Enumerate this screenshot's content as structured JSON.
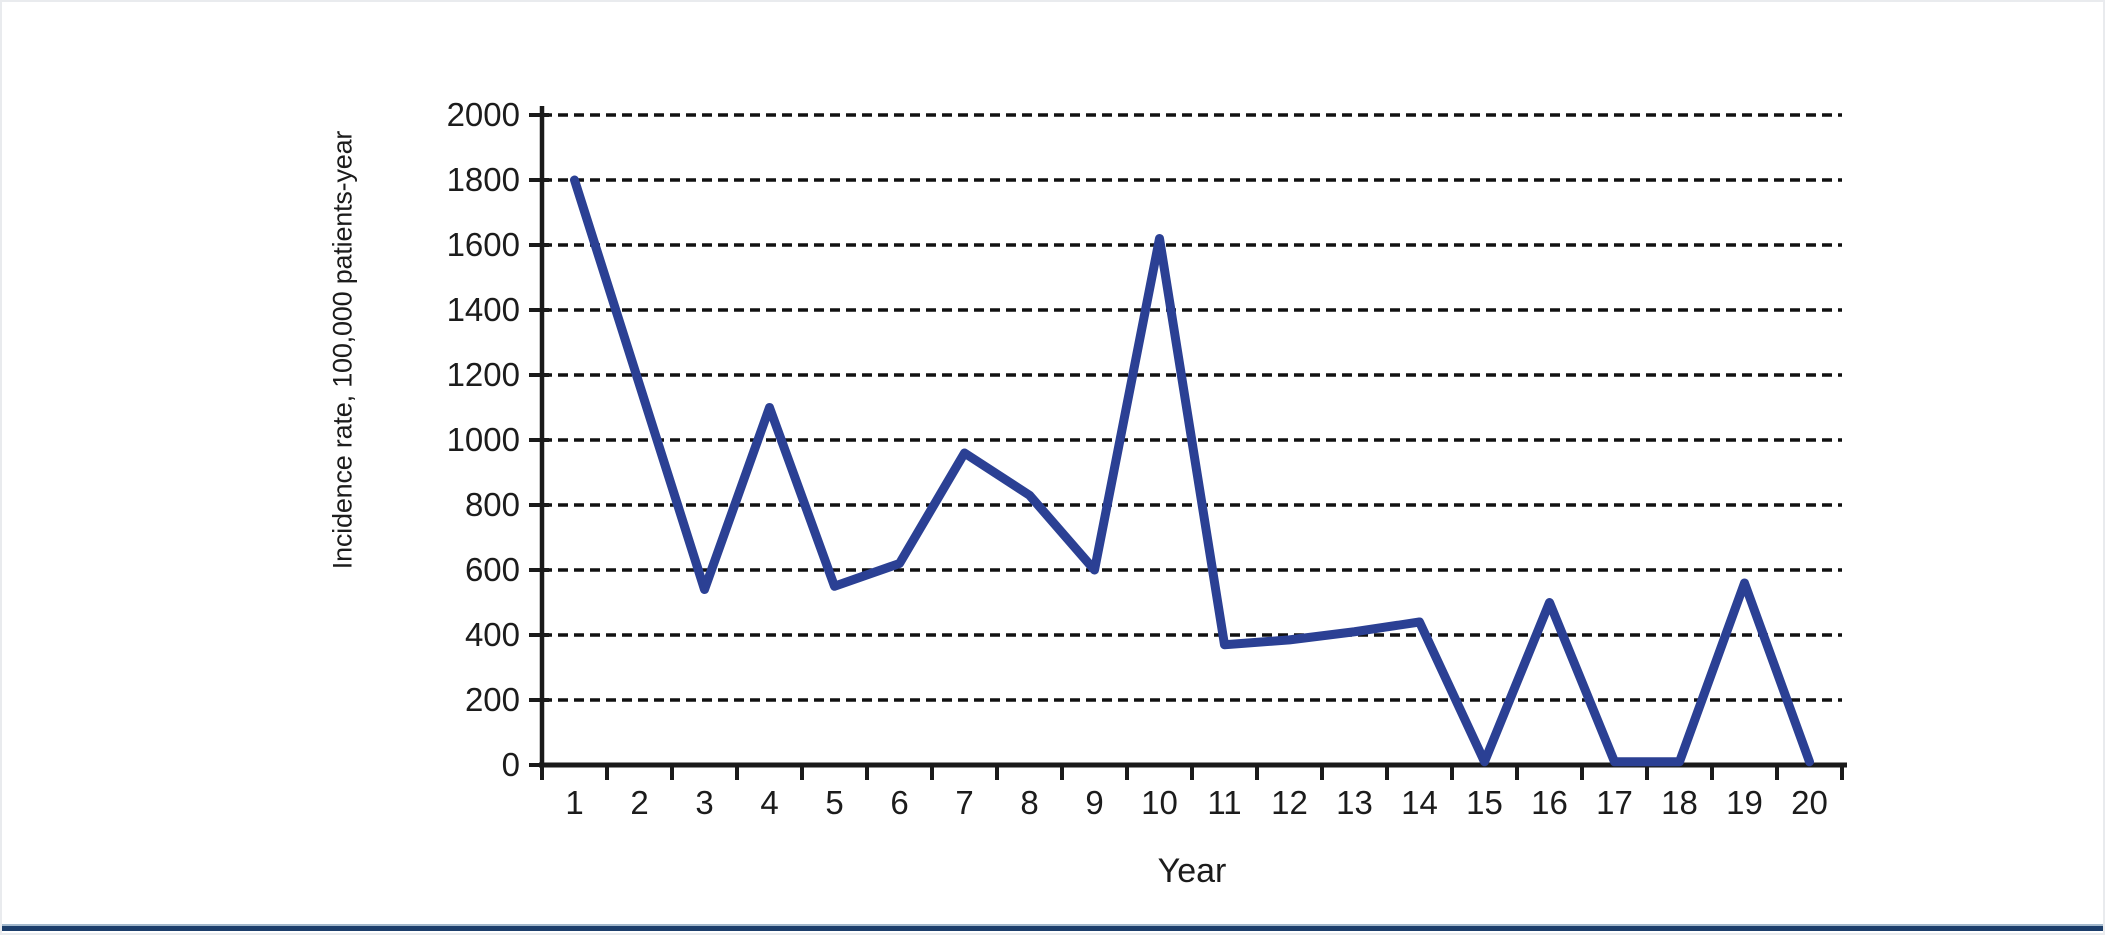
{
  "page": {
    "background": "#ffffff",
    "footer_rule_light_color": "#a2b8cc",
    "footer_rule_dark_color": "#1c3e6b"
  },
  "chart_data": {
    "type": "line",
    "title": "",
    "xlabel": "Year",
    "ylabel": "Incidence rate, 100,000 patients-year",
    "categories": [
      "1",
      "2",
      "3",
      "4",
      "5",
      "6",
      "7",
      "8",
      "9",
      "10",
      "11",
      "12",
      "13",
      "14",
      "15",
      "16",
      "17",
      "18",
      "19",
      "20"
    ],
    "series": [
      {
        "name": "Incidence rate per 100,000 patients-year",
        "values": [
          1800,
          1170,
          540,
          1100,
          550,
          620,
          960,
          830,
          600,
          1620,
          370,
          385,
          410,
          440,
          10,
          500,
          10,
          10,
          560,
          10
        ]
      }
    ],
    "ylim": [
      0,
      2000
    ],
    "yticks": [
      0,
      200,
      400,
      600,
      800,
      1000,
      1200,
      1400,
      1600,
      1800,
      2000
    ],
    "ytick_labels": [
      "0",
      "200",
      "400",
      "600",
      "800",
      "1000",
      "1200",
      "1400",
      "1600",
      "1800",
      "2000"
    ],
    "grid": {
      "horizontal": true,
      "vertical": false,
      "style": "dashed",
      "color": "#111111"
    },
    "legend": "none",
    "line_color": "#2b4094",
    "axis_color": "#1a1a1a",
    "tick_label_color": "#1c1c1c"
  }
}
